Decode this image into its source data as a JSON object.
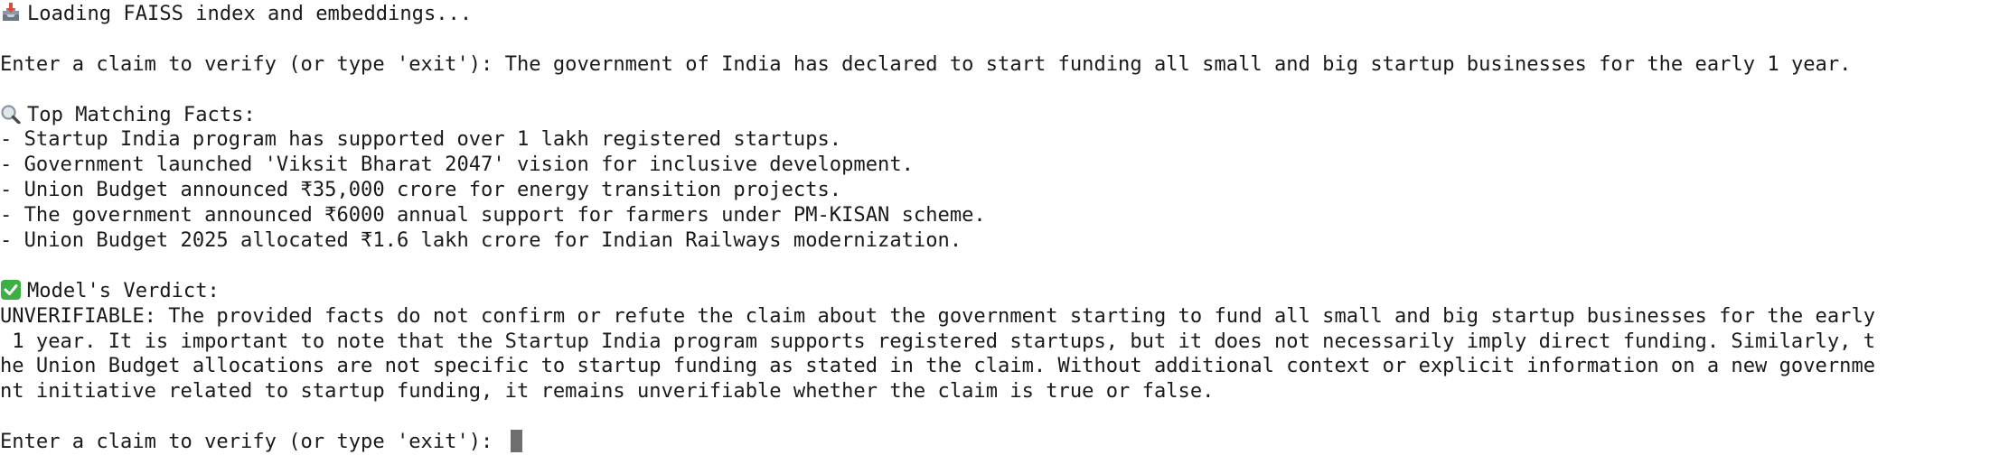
{
  "terminal": {
    "loading_text": "Loading FAISS index and embeddings...",
    "prompt_label": "Enter a claim to verify (or type 'exit'): ",
    "claim_input": "The government of India has declared to start funding all small and big startup businesses for the early 1 year.",
    "facts_heading": "Top Matching Facts:",
    "facts": [
      "- Startup India program has supported over 1 lakh registered startups.",
      "- Government launched 'Viksit Bharat 2047' vision for inclusive development.",
      "- Union Budget announced ₹35,000 crore for energy transition projects.",
      "- The government announced ₹6000 annual support for farmers under PM-KISAN scheme.",
      "- Union Budget 2025 allocated ₹1.6 lakh crore for Indian Railways modernization."
    ],
    "verdict_heading": "Model's Verdict:",
    "verdict_lines": [
      "UNVERIFIABLE: The provided facts do not confirm or refute the claim about the government starting to fund all small and big startup businesses for the early",
      " 1 year. It is important to note that the Startup India program supports registered startups, but it does not necessarily imply direct funding. Similarly, t",
      "he Union Budget allocations are not specific to startup funding as stated in the claim. Without additional context or explicit information on a new governme",
      "nt initiative related to startup funding, it remains unverifiable whether the claim is true or false."
    ],
    "final_prompt_label": "Enter a claim to verify (or type 'exit'): ",
    "final_input": "",
    "icons": {
      "loading": "inbox-tray-icon",
      "facts": "magnifying-glass-icon",
      "verdict": "check-mark-icon"
    },
    "colors": {
      "text": "#1a1a1a",
      "background": "#ffffff",
      "cursor": "#6e6e6e",
      "check_green": "#3cb043"
    }
  }
}
